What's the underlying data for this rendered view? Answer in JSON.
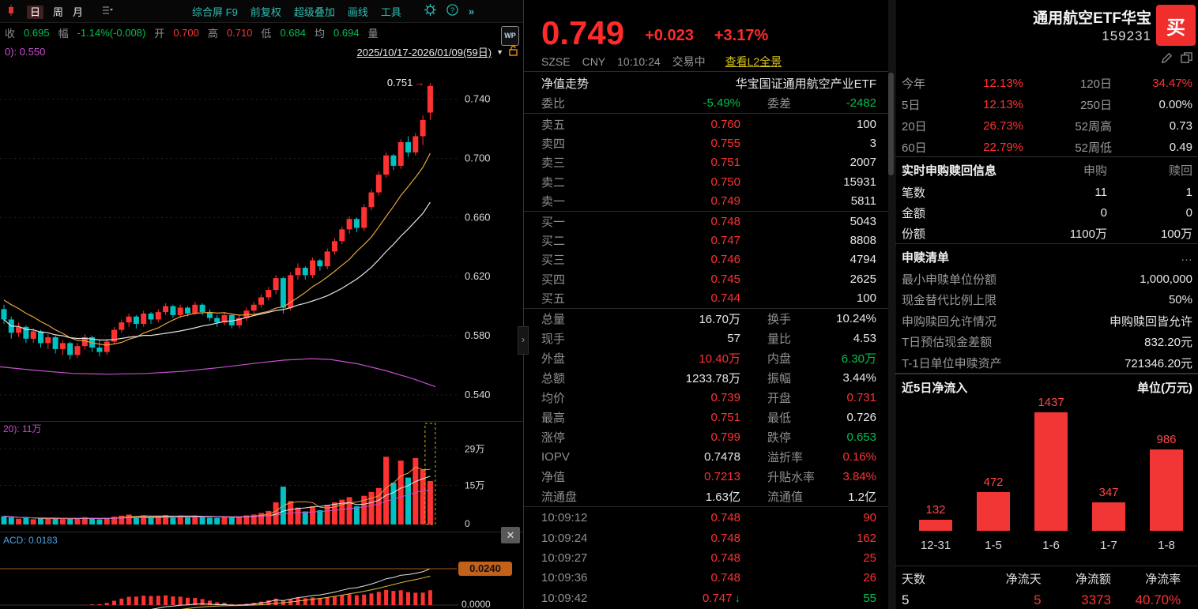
{
  "colors": {
    "up": "#ff3232",
    "down_text": "#00c050",
    "candle_down": "#00c2c2",
    "link_yellow": "#d9c217",
    "purple": "#c84fd0",
    "orange_ma": "#e8a33d",
    "white_ma": "#e2e2e2",
    "badge_orange": "#c2611c",
    "buy_button": "#f12e2e",
    "macd_label": "#4aa3df"
  },
  "toolbar": {
    "periods": [
      "日",
      "周",
      "月"
    ],
    "active_period": "日",
    "items": [
      "综合屏 F9",
      "前复权",
      "超级叠加",
      "画线",
      "工具"
    ],
    "wp": "WP"
  },
  "quote_bar": [
    {
      "l": "收",
      "v": "0.695",
      "c": "g"
    },
    {
      "l": "幅",
      "v": "-1.14%(-0.008)",
      "c": "g"
    },
    {
      "l": "开",
      "v": "0.700",
      "c": "r"
    },
    {
      "l": "高",
      "v": "0.710",
      "c": "r"
    },
    {
      "l": "低",
      "v": "0.684",
      "c": "g"
    },
    {
      "l": "均",
      "v": "0.694",
      "c": "g"
    },
    {
      "l": "量",
      "v": "",
      "c": "w"
    }
  ],
  "range_bar": {
    "indicator": "0): 0.550",
    "range": "2025/10/17-2026/01/09(59日)",
    "caret": "▼"
  },
  "chart_data": [
    {
      "type": "candlestick",
      "period": "日",
      "date_range": "2025/10/17-2026/01/09(59日)",
      "ylim": [
        0.533,
        0.758
      ],
      "axis_labels": [
        {
          "price": 0.74,
          "label": "0.740"
        },
        {
          "price": 0.7,
          "label": "0.700"
        },
        {
          "price": 0.66,
          "label": "0.660"
        },
        {
          "price": 0.62,
          "label": "0.620"
        },
        {
          "price": 0.58,
          "label": "0.580"
        },
        {
          "price": 0.54,
          "label": "0.540"
        }
      ],
      "high_annotation": {
        "label": "0.751",
        "arrow": "→",
        "index": 58
      },
      "pre_closes": [
        0.64,
        0.637,
        0.634,
        0.631,
        0.628,
        0.626,
        0.624,
        0.622,
        0.62,
        0.618,
        0.616,
        0.614,
        0.612,
        0.61,
        0.608,
        0.606,
        0.604,
        0.602,
        0.599,
        0.596
      ],
      "candles": [
        [
          0.598,
          0.601,
          0.588,
          0.591
        ],
        [
          0.591,
          0.593,
          0.578,
          0.582
        ],
        [
          0.582,
          0.589,
          0.579,
          0.586
        ],
        [
          0.586,
          0.587,
          0.575,
          0.578
        ],
        [
          0.578,
          0.585,
          0.575,
          0.583
        ],
        [
          0.583,
          0.584,
          0.572,
          0.575
        ],
        [
          0.575,
          0.581,
          0.571,
          0.579
        ],
        [
          0.579,
          0.58,
          0.568,
          0.571
        ],
        [
          0.571,
          0.577,
          0.567,
          0.575
        ],
        [
          0.575,
          0.576,
          0.564,
          0.567
        ],
        [
          0.567,
          0.575,
          0.565,
          0.573
        ],
        [
          0.573,
          0.581,
          0.571,
          0.579
        ],
        [
          0.579,
          0.58,
          0.569,
          0.572
        ],
        [
          0.572,
          0.577,
          0.566,
          0.569
        ],
        [
          0.569,
          0.578,
          0.567,
          0.576
        ],
        [
          0.576,
          0.586,
          0.574,
          0.584
        ],
        [
          0.584,
          0.591,
          0.582,
          0.589
        ],
        [
          0.589,
          0.595,
          0.586,
          0.593
        ],
        [
          0.593,
          0.594,
          0.585,
          0.588
        ],
        [
          0.588,
          0.597,
          0.586,
          0.595
        ],
        [
          0.595,
          0.596,
          0.588,
          0.591
        ],
        [
          0.591,
          0.598,
          0.589,
          0.596
        ],
        [
          0.596,
          0.602,
          0.594,
          0.6
        ],
        [
          0.6,
          0.601,
          0.592,
          0.594
        ],
        [
          0.594,
          0.601,
          0.592,
          0.599
        ],
        [
          0.599,
          0.6,
          0.593,
          0.595
        ],
        [
          0.595,
          0.603,
          0.594,
          0.601
        ],
        [
          0.601,
          0.602,
          0.594,
          0.596
        ],
        [
          0.596,
          0.598,
          0.59,
          0.592
        ],
        [
          0.592,
          0.594,
          0.586,
          0.589
        ],
        [
          0.589,
          0.596,
          0.587,
          0.594
        ],
        [
          0.594,
          0.595,
          0.585,
          0.587
        ],
        [
          0.587,
          0.594,
          0.585,
          0.592
        ],
        [
          0.592,
          0.599,
          0.59,
          0.597
        ],
        [
          0.597,
          0.603,
          0.595,
          0.601
        ],
        [
          0.601,
          0.608,
          0.599,
          0.606
        ],
        [
          0.606,
          0.613,
          0.604,
          0.611
        ],
        [
          0.611,
          0.621,
          0.608,
          0.619
        ],
        [
          0.619,
          0.62,
          0.595,
          0.599
        ],
        [
          0.599,
          0.623,
          0.597,
          0.621
        ],
        [
          0.621,
          0.629,
          0.618,
          0.626
        ],
        [
          0.626,
          0.627,
          0.618,
          0.621
        ],
        [
          0.621,
          0.633,
          0.619,
          0.631
        ],
        [
          0.631,
          0.632,
          0.624,
          0.627
        ],
        [
          0.627,
          0.639,
          0.625,
          0.637
        ],
        [
          0.637,
          0.646,
          0.635,
          0.644
        ],
        [
          0.644,
          0.654,
          0.642,
          0.652
        ],
        [
          0.652,
          0.661,
          0.649,
          0.659
        ],
        [
          0.659,
          0.66,
          0.65,
          0.653
        ],
        [
          0.653,
          0.669,
          0.651,
          0.667
        ],
        [
          0.667,
          0.679,
          0.665,
          0.677
        ],
        [
          0.677,
          0.691,
          0.675,
          0.689
        ],
        [
          0.689,
          0.704,
          0.687,
          0.702
        ],
        [
          0.702,
          0.703,
          0.692,
          0.695
        ],
        [
          0.695,
          0.713,
          0.693,
          0.711
        ],
        [
          0.711,
          0.715,
          0.701,
          0.704
        ],
        [
          0.704,
          0.717,
          0.702,
          0.715
        ],
        [
          0.715,
          0.729,
          0.709,
          0.726
        ],
        [
          0.731,
          0.751,
          0.726,
          0.749
        ]
      ],
      "purple_ma": [
        [
          0.0,
          0.559
        ],
        [
          0.08,
          0.5565
        ],
        [
          0.16,
          0.5545
        ],
        [
          0.24,
          0.554
        ],
        [
          0.32,
          0.5545
        ],
        [
          0.4,
          0.556
        ],
        [
          0.48,
          0.5585
        ],
        [
          0.56,
          0.5615
        ],
        [
          0.62,
          0.5635
        ],
        [
          0.68,
          0.5645
        ],
        [
          0.72,
          0.564
        ],
        [
          0.78,
          0.561
        ],
        [
          0.84,
          0.5565
        ],
        [
          0.9,
          0.551
        ],
        [
          0.95,
          0.5455
        ]
      ]
    },
    {
      "type": "bar",
      "name": "成交量",
      "ylim": [
        0,
        35
      ],
      "ma_label": "20): 11万",
      "selected_index": 58,
      "axis": [
        {
          "v": 29,
          "label": "29万"
        },
        {
          "v": 15,
          "label": "15万"
        },
        {
          "v": 0,
          "label": "0"
        }
      ],
      "values": [
        3.2,
        2.8,
        2.2,
        2.5,
        2.0,
        2.3,
        2.1,
        2.6,
        2.0,
        2.4,
        2.1,
        2.8,
        2.3,
        2.0,
        2.5,
        3.0,
        3.4,
        3.8,
        2.9,
        3.5,
        2.8,
        3.2,
        3.6,
        2.9,
        3.3,
        2.8,
        3.4,
        2.9,
        2.6,
        2.5,
        3.0,
        2.7,
        3.1,
        3.5,
        3.8,
        4.4,
        5.2,
        8.5,
        14.5,
        9.0,
        6.5,
        5.0,
        7.0,
        5.5,
        7.5,
        8.5,
        9.5,
        10.5,
        7.0,
        11.0,
        12.5,
        14.0,
        26.0,
        16.0,
        24.5,
        18.0,
        25.5,
        21.0,
        16.7
      ]
    },
    {
      "type": "macd",
      "label": "ACD: 0.0183",
      "level_badge": "0.0240",
      "zero_label": "0.0000"
    },
    {
      "type": "bar",
      "title": "近5日净流入",
      "unit_label": "单位(万元)",
      "categories": [
        "12-31",
        "1-5",
        "1-6",
        "1-7",
        "1-8"
      ],
      "values": [
        132,
        472,
        1437,
        347,
        986
      ],
      "bar_color": "#f23535"
    }
  ],
  "middle": {
    "price": "0.749",
    "change": "+0.023",
    "change_pct": "+3.17%",
    "exchange": "SZSE",
    "currency": "CNY",
    "time": "10:10:24",
    "session": "交易中",
    "l2_link": "查看L2全景",
    "nav_link": "净值走势",
    "fund_name": "华宝国证通用航空产业ETF",
    "weibi_label": "委比",
    "weibi": "-5.49%",
    "weicha_label": "委差",
    "weicha": "-2482",
    "asks": [
      {
        "label": "卖五",
        "price": "0.760",
        "vol": "100"
      },
      {
        "label": "卖四",
        "price": "0.755",
        "vol": "3"
      },
      {
        "label": "卖三",
        "price": "0.751",
        "vol": "2007"
      },
      {
        "label": "卖二",
        "price": "0.750",
        "vol": "15931"
      },
      {
        "label": "卖一",
        "price": "0.749",
        "vol": "5811"
      }
    ],
    "bids": [
      {
        "label": "买一",
        "price": "0.748",
        "vol": "5043"
      },
      {
        "label": "买二",
        "price": "0.747",
        "vol": "8808"
      },
      {
        "label": "买三",
        "price": "0.746",
        "vol": "4794"
      },
      {
        "label": "买四",
        "price": "0.745",
        "vol": "2625"
      },
      {
        "label": "买五",
        "price": "0.744",
        "vol": "100"
      }
    ],
    "stats": [
      {
        "l": "总量",
        "v": "16.70万",
        "c": "w",
        "l2": "换手",
        "v2": "10.24%",
        "c2": "w"
      },
      {
        "l": "现手",
        "v": "57",
        "c": "w",
        "l2": "量比",
        "v2": "4.53",
        "c2": "w"
      },
      {
        "l": "外盘",
        "v": "10.40万",
        "c": "r",
        "l2": "内盘",
        "v2": "6.30万",
        "c2": "g"
      },
      {
        "l": "总额",
        "v": "1233.78万",
        "c": "w",
        "l2": "振幅",
        "v2": "3.44%",
        "c2": "w"
      },
      {
        "l": "均价",
        "v": "0.739",
        "c": "r",
        "l2": "开盘",
        "v2": "0.731",
        "c2": "r"
      },
      {
        "l": "最高",
        "v": "0.751",
        "c": "r",
        "l2": "最低",
        "v2": "0.726",
        "c2": "w"
      },
      {
        "l": "涨停",
        "v": "0.799",
        "c": "r",
        "l2": "跌停",
        "v2": "0.653",
        "c2": "g"
      },
      {
        "l": "IOPV",
        "v": "0.7478",
        "c": "w",
        "l2": "溢折率",
        "v2": "0.16%",
        "c2": "r"
      },
      {
        "l": "净值",
        "v": "0.7213",
        "c": "r",
        "l2": "升贴水率",
        "v2": "3.84%",
        "c2": "r"
      },
      {
        "l": "流通盘",
        "v": "1.63亿",
        "c": "w",
        "l2": "流通值",
        "v2": "1.2亿",
        "c2": "w"
      }
    ],
    "ticks": [
      {
        "time": "10:09:12",
        "price": "0.748",
        "vol": "90",
        "vol_c": "r",
        "arrow": ""
      },
      {
        "time": "10:09:24",
        "price": "0.748",
        "vol": "162",
        "vol_c": "r",
        "arrow": ""
      },
      {
        "time": "10:09:27",
        "price": "0.748",
        "vol": "25",
        "vol_c": "r",
        "arrow": ""
      },
      {
        "time": "10:09:36",
        "price": "0.748",
        "vol": "26",
        "vol_c": "r",
        "arrow": ""
      },
      {
        "time": "10:09:42",
        "price": "0.747",
        "vol": "55",
        "vol_c": "g",
        "arrow": "↓"
      }
    ]
  },
  "right": {
    "name": "通用航空ETF华宝",
    "code": "159231",
    "buy_button": "买",
    "perf": [
      {
        "l": "今年",
        "v": "12.13%",
        "c": "r",
        "l2": "120日",
        "v2": "34.47%",
        "c2": "r"
      },
      {
        "l": "5日",
        "v": "12.13%",
        "c": "r",
        "l2": "250日",
        "v2": "0.00%",
        "c2": "w"
      },
      {
        "l": "20日",
        "v": "26.73%",
        "c": "r",
        "l2": "52周高",
        "v2": "0.73",
        "c2": "w"
      },
      {
        "l": "60日",
        "v": "22.79%",
        "c": "r",
        "l2": "52周低",
        "v2": "0.49",
        "c2": "w"
      }
    ],
    "subscription": {
      "title": "实时申购赎回信息",
      "col1": "申购",
      "col2": "赎回",
      "rows": [
        {
          "l": "笔数",
          "v1": "11",
          "v2": "1"
        },
        {
          "l": "金额",
          "v1": "0",
          "v2": "0"
        },
        {
          "l": "份额",
          "v1": "1100万",
          "v2": "100万"
        }
      ]
    },
    "redemption": {
      "title": "申赎清单",
      "more": "…",
      "rows": [
        {
          "l": "最小申赎单位份额",
          "v": "1,000,000"
        },
        {
          "l": "现金替代比例上限",
          "v": "50%"
        },
        {
          "l": "申购赎回允许情况",
          "v": "申购赎回皆允许"
        },
        {
          "l": "T日预估现金差额",
          "v": "832.20元"
        },
        {
          "l": "T-1日单位申赎资产",
          "v": "721346.20元"
        }
      ]
    },
    "flows_title": "近5日净流入",
    "flows_unit": "单位(万元)",
    "footer": [
      {
        "l": "天数",
        "v": "5",
        "c": "w"
      },
      {
        "l": "净流天",
        "v": "5",
        "c": "r"
      },
      {
        "l": "净流额",
        "v": "3373",
        "c": "r"
      },
      {
        "l": "净流率",
        "v": "40.70%",
        "c": "r"
      }
    ]
  }
}
